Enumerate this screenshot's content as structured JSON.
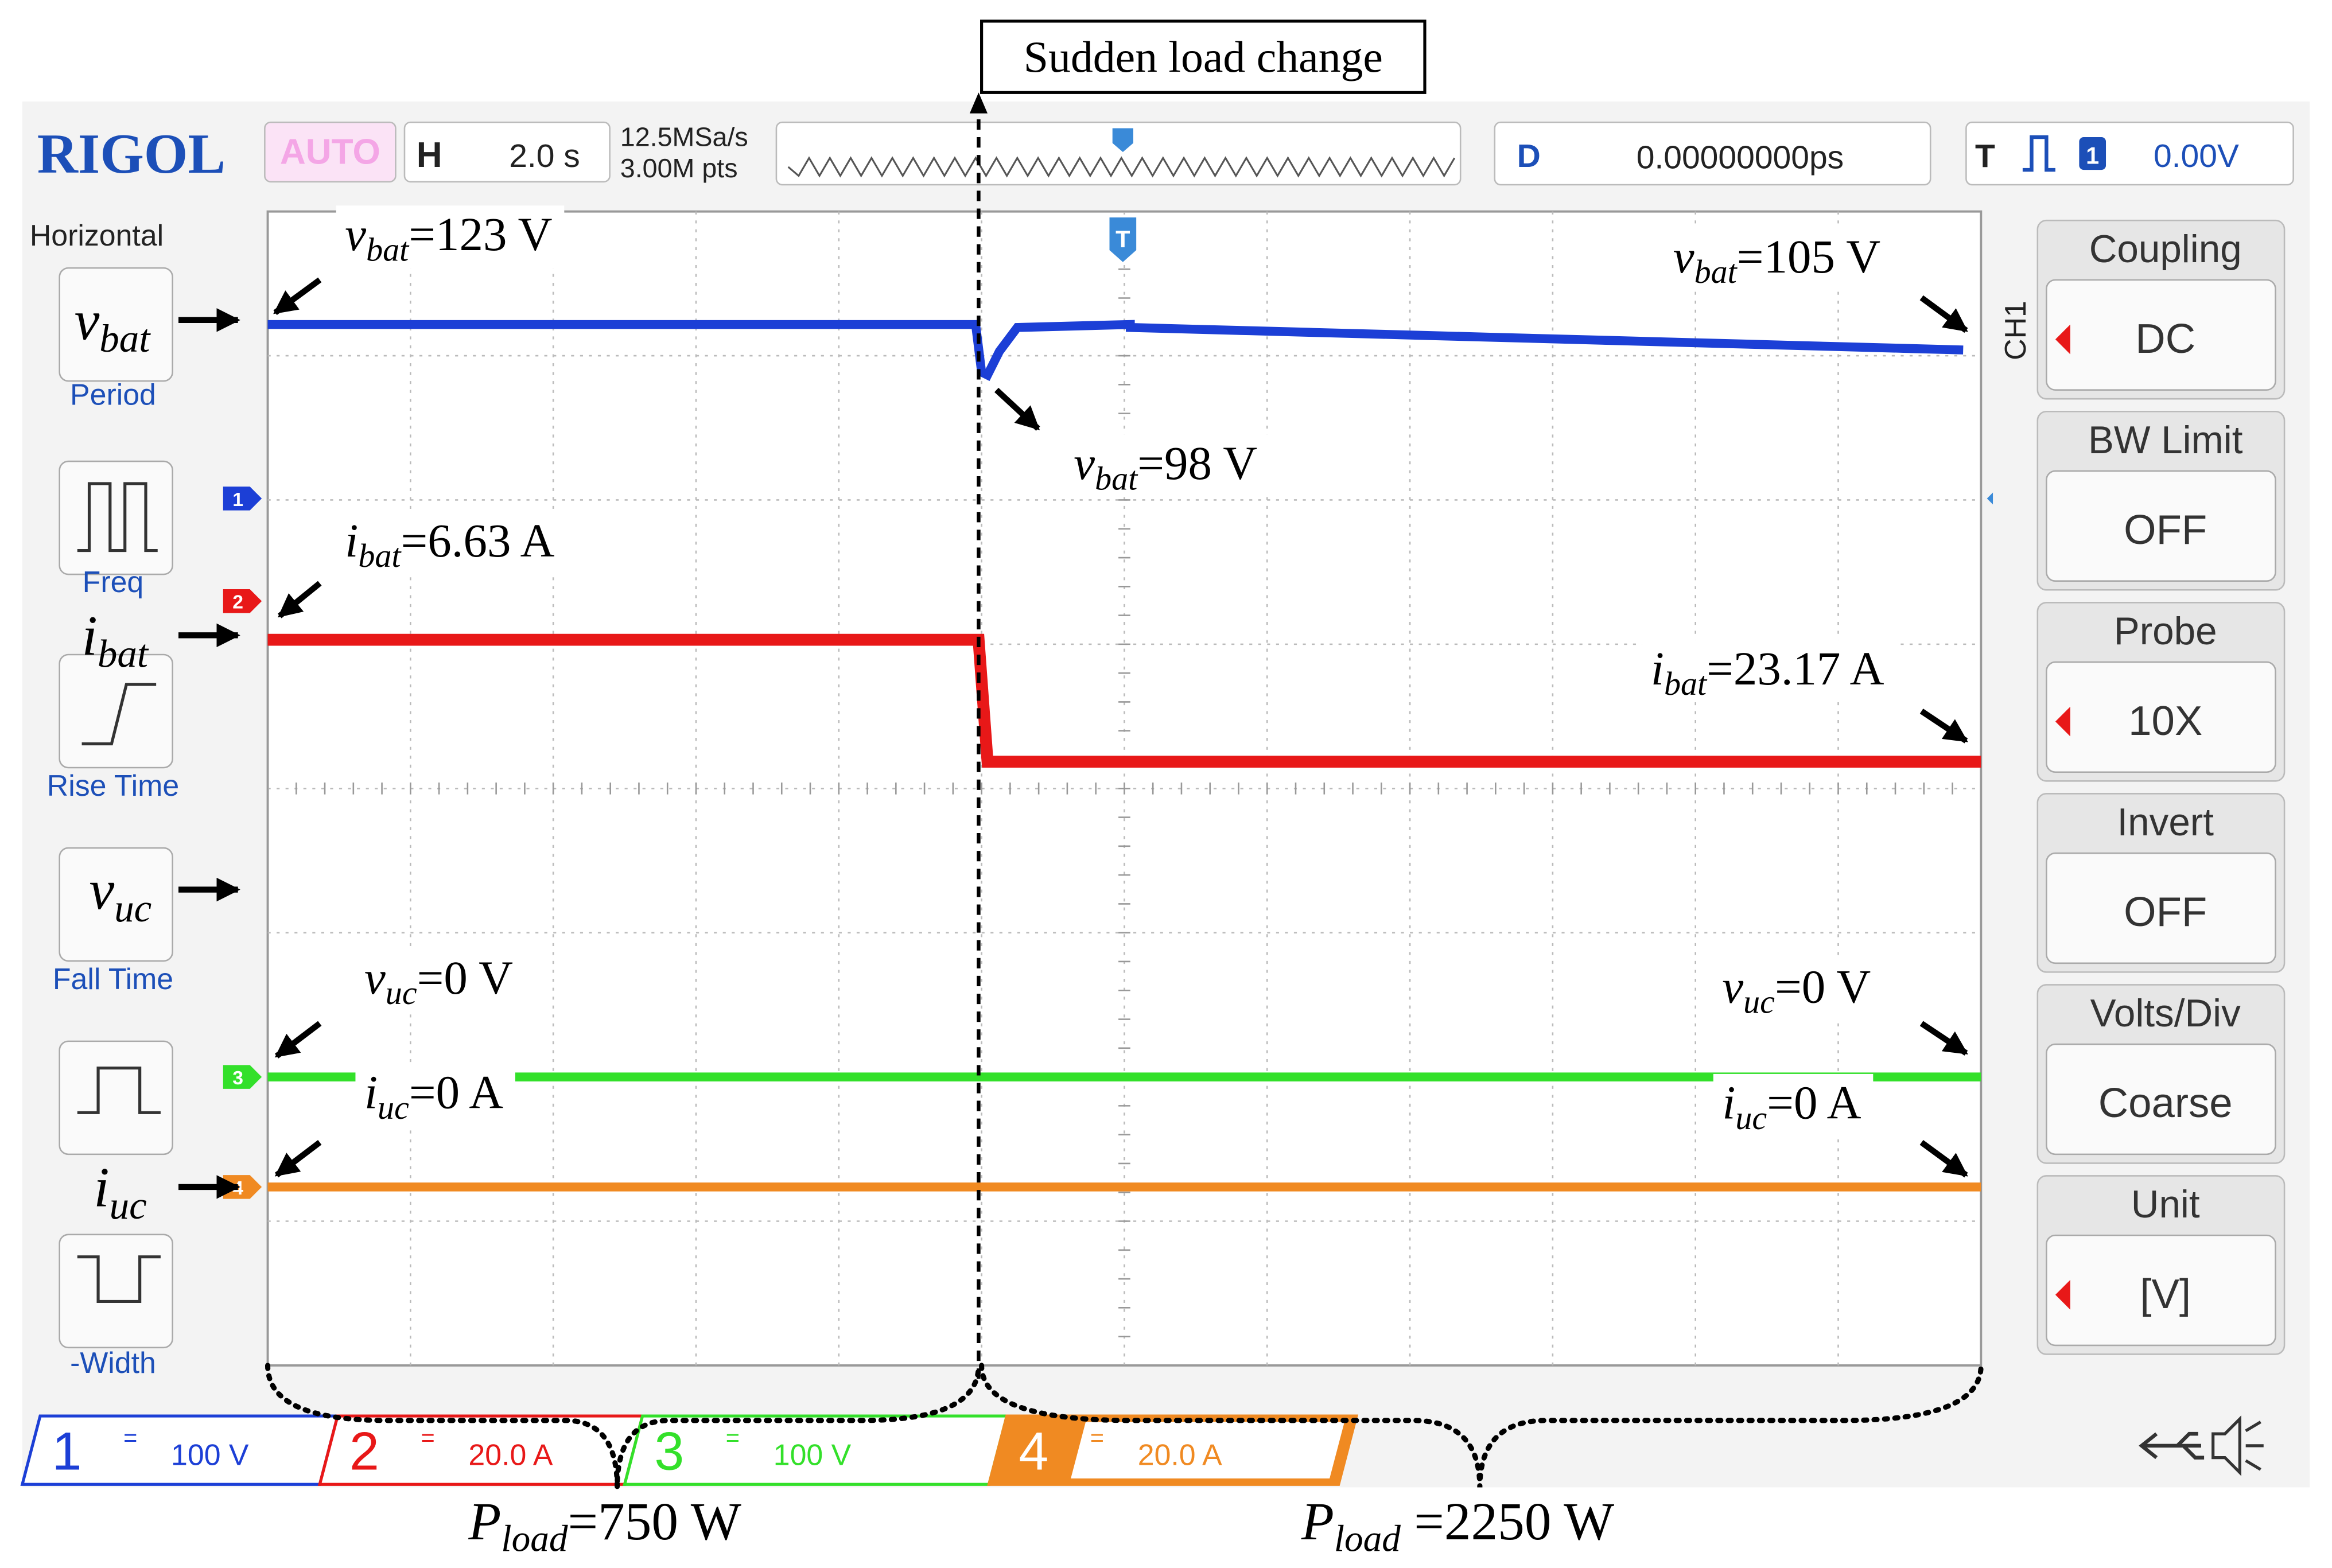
{
  "header": {
    "brand": "RIGOL",
    "mode": "AUTO",
    "h_label": "H",
    "timebase": "2.0 s",
    "sample_rate": "12.5MSa/s",
    "memory_depth": "3.00M pts",
    "d_label": "D",
    "delay": "0.00000000ps",
    "t_label": "T",
    "trigger_source": "1",
    "trigger_level": "0.00V"
  },
  "left_menu": {
    "title": "Horizontal",
    "items": [
      "Period",
      "Freq",
      "Rise Time",
      "Fall Time",
      "-Width"
    ]
  },
  "right_menu": {
    "channel": "CH1",
    "items": [
      {
        "label": "Coupling",
        "value": "DC"
      },
      {
        "label": "BW Limit",
        "value": "OFF"
      },
      {
        "label": "Probe",
        "value": "10X"
      },
      {
        "label": "Invert",
        "value": "OFF"
      },
      {
        "label": "Volts/Div",
        "value": "Coarse"
      },
      {
        "label": "Unit",
        "value": "[V]"
      }
    ]
  },
  "trigger_marker": "T",
  "channels": [
    {
      "number": "1",
      "coupling": "=",
      "scale": "100 V"
    },
    {
      "number": "2",
      "coupling": "=",
      "scale": "20.0 A"
    },
    {
      "number": "3",
      "coupling": "=",
      "scale": "100 V"
    },
    {
      "number": "4",
      "coupling": "=",
      "scale": "20.0 A"
    }
  ],
  "annotations": {
    "event": "Sudden load change",
    "signals": [
      {
        "symbol": "v",
        "sub": "bat"
      },
      {
        "symbol": "i",
        "sub": "bat"
      },
      {
        "symbol": "v",
        "sub": "uc"
      },
      {
        "symbol": "i",
        "sub": "uc"
      }
    ],
    "readings": [
      {
        "symbol": "v",
        "sub": "bat",
        "text": "=123 V"
      },
      {
        "symbol": "v",
        "sub": "bat",
        "text": "=105 V"
      },
      {
        "symbol": "v",
        "sub": "bat",
        "text": "=98 V"
      },
      {
        "symbol": "i",
        "sub": "bat",
        "text": "=6.63 A"
      },
      {
        "symbol": "i",
        "sub": "bat",
        "text": "=23.17 A"
      },
      {
        "symbol": "v",
        "sub": "uc",
        "text": "=0 V"
      },
      {
        "symbol": "v",
        "sub": "uc",
        "text": "=0 V"
      },
      {
        "symbol": "i",
        "sub": "uc",
        "text": "=0 A"
      },
      {
        "symbol": "i",
        "sub": "uc",
        "text": "=0 A"
      }
    ],
    "loads": [
      {
        "symbol": "P",
        "sub": "load",
        "text": "=750 W"
      },
      {
        "symbol": "P",
        "sub": "load",
        "text": " =2250 W"
      }
    ]
  }
}
